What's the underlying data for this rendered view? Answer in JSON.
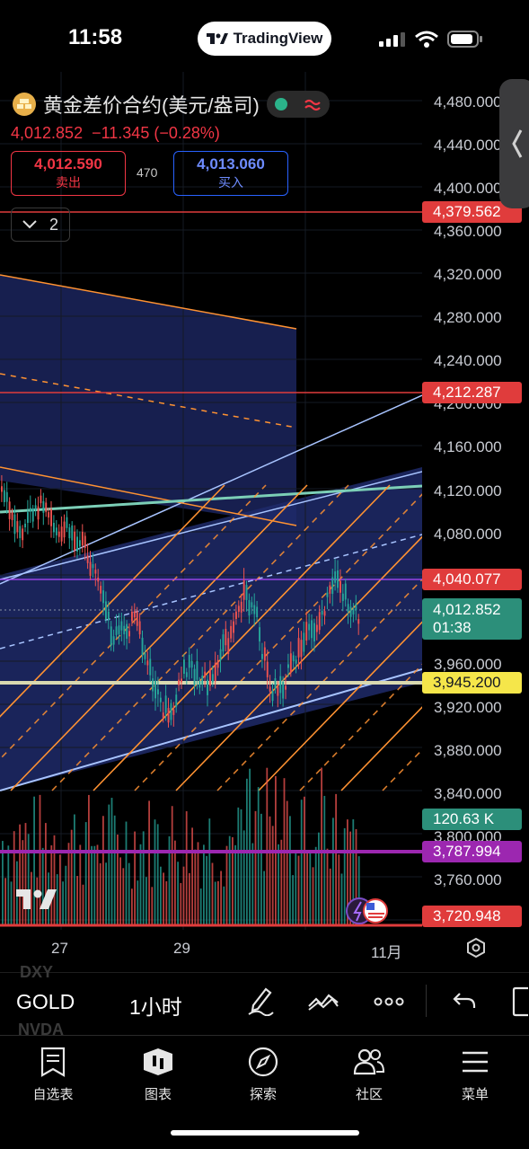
{
  "status": {
    "time": "11:58",
    "app_pill": "TradingView"
  },
  "symbol": {
    "title": "黄金差价合约(美元/盎司)",
    "last": "4,012.852",
    "change": "−11.345 (−0.28%)",
    "sell_price": "4,012.590",
    "sell_label": "卖出",
    "spread": "470",
    "buy_price": "4,013.060",
    "buy_label": "买入",
    "collapse_count": "2",
    "status_icons": [
      "market-open-dot-icon",
      "delayed-wave-icon"
    ]
  },
  "price_axis": {
    "labels": [
      "4,480.000",
      "4,440.000",
      "4,400.000",
      "4,360.000",
      "4,320.000",
      "4,280.000",
      "4,240.000",
      "4,200.000",
      "4,160.000",
      "4,120.000",
      "4,080.000",
      "3,960.000",
      "3,920.000",
      "3,880.000",
      "3,840.000",
      "3,800.000",
      "3,760.000"
    ],
    "tags": [
      {
        "text": "4,379.562",
        "color": "#e03c3c"
      },
      {
        "text": "4,212.287",
        "color": "#e03c3c"
      },
      {
        "text": "4,040.077",
        "color": "#e03c3c"
      },
      {
        "text": "3,945.200",
        "color": "#f5e64a"
      },
      {
        "text": "120.63 K",
        "color": "#2c8f7a"
      },
      {
        "text": "3,787.994",
        "color": "#9c27b0"
      },
      {
        "text": "3,720.948",
        "color": "#e03c3c"
      }
    ],
    "current_price": "4,012.852",
    "countdown": "01:38"
  },
  "time_axis": {
    "labels": [
      "27",
      "29",
      "11月"
    ]
  },
  "toolbar": {
    "symbol": "GOLD",
    "interval": "1小时",
    "ghost_symbols": [
      "DXY",
      "NVDA"
    ],
    "icons": [
      "pen-draw-icon",
      "indicator-icon",
      "more-icon",
      "undo-icon",
      "fullscreen-icon"
    ]
  },
  "nav": {
    "items": [
      {
        "label": "自选表",
        "icon": "watchlist-icon"
      },
      {
        "label": "图表",
        "icon": "chart-icon"
      },
      {
        "label": "探索",
        "icon": "compass-icon"
      },
      {
        "label": "社区",
        "icon": "community-icon"
      },
      {
        "label": "菜单",
        "icon": "menu-icon"
      }
    ]
  },
  "colors": {
    "up": "#26a69a",
    "down": "#ef5350",
    "channel_blue": "#a8c4ff",
    "fib_orange": "#ff9232",
    "zone_fill": "#1e2a6a"
  }
}
